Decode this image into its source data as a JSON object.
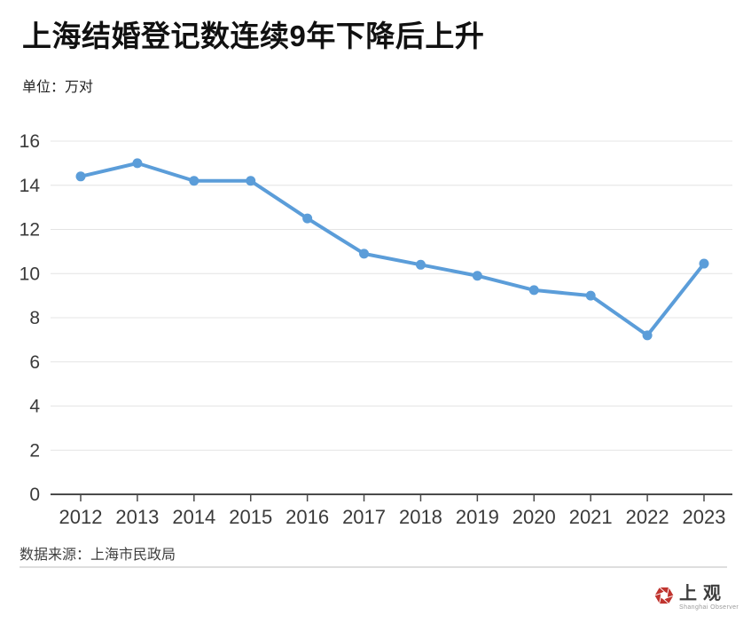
{
  "header": {
    "title": "上海结婚登记数连续9年下降后上升",
    "unit_label": "单位：万对"
  },
  "chart_data": {
    "type": "line",
    "title": "上海结婚登记数连续9年下降后上升",
    "unit": "万对",
    "categories": [
      "2012",
      "2013",
      "2014",
      "2015",
      "2016",
      "2017",
      "2018",
      "2019",
      "2020",
      "2021",
      "2022",
      "2023"
    ],
    "values": [
      14.4,
      15.0,
      14.2,
      14.2,
      12.5,
      10.9,
      10.4,
      9.9,
      9.25,
      9.0,
      7.2,
      10.45
    ],
    "ylim": [
      0,
      16
    ],
    "ytick_step": 2,
    "grid": true,
    "legend_position": "none",
    "line_color": "#5B9DD9",
    "marker": "circle"
  },
  "footer": {
    "source": "数据来源：上海市民政局",
    "logo": {
      "name": "上观",
      "subtext": "Shanghai Observer",
      "color": "#C0342F"
    }
  },
  "colors": {
    "line": "#5B9DD9",
    "gridline": "#e4e4e4",
    "axis": "#4a4a4a",
    "axis_label": "#3a3a3a",
    "logo_red": "#C0342F"
  }
}
